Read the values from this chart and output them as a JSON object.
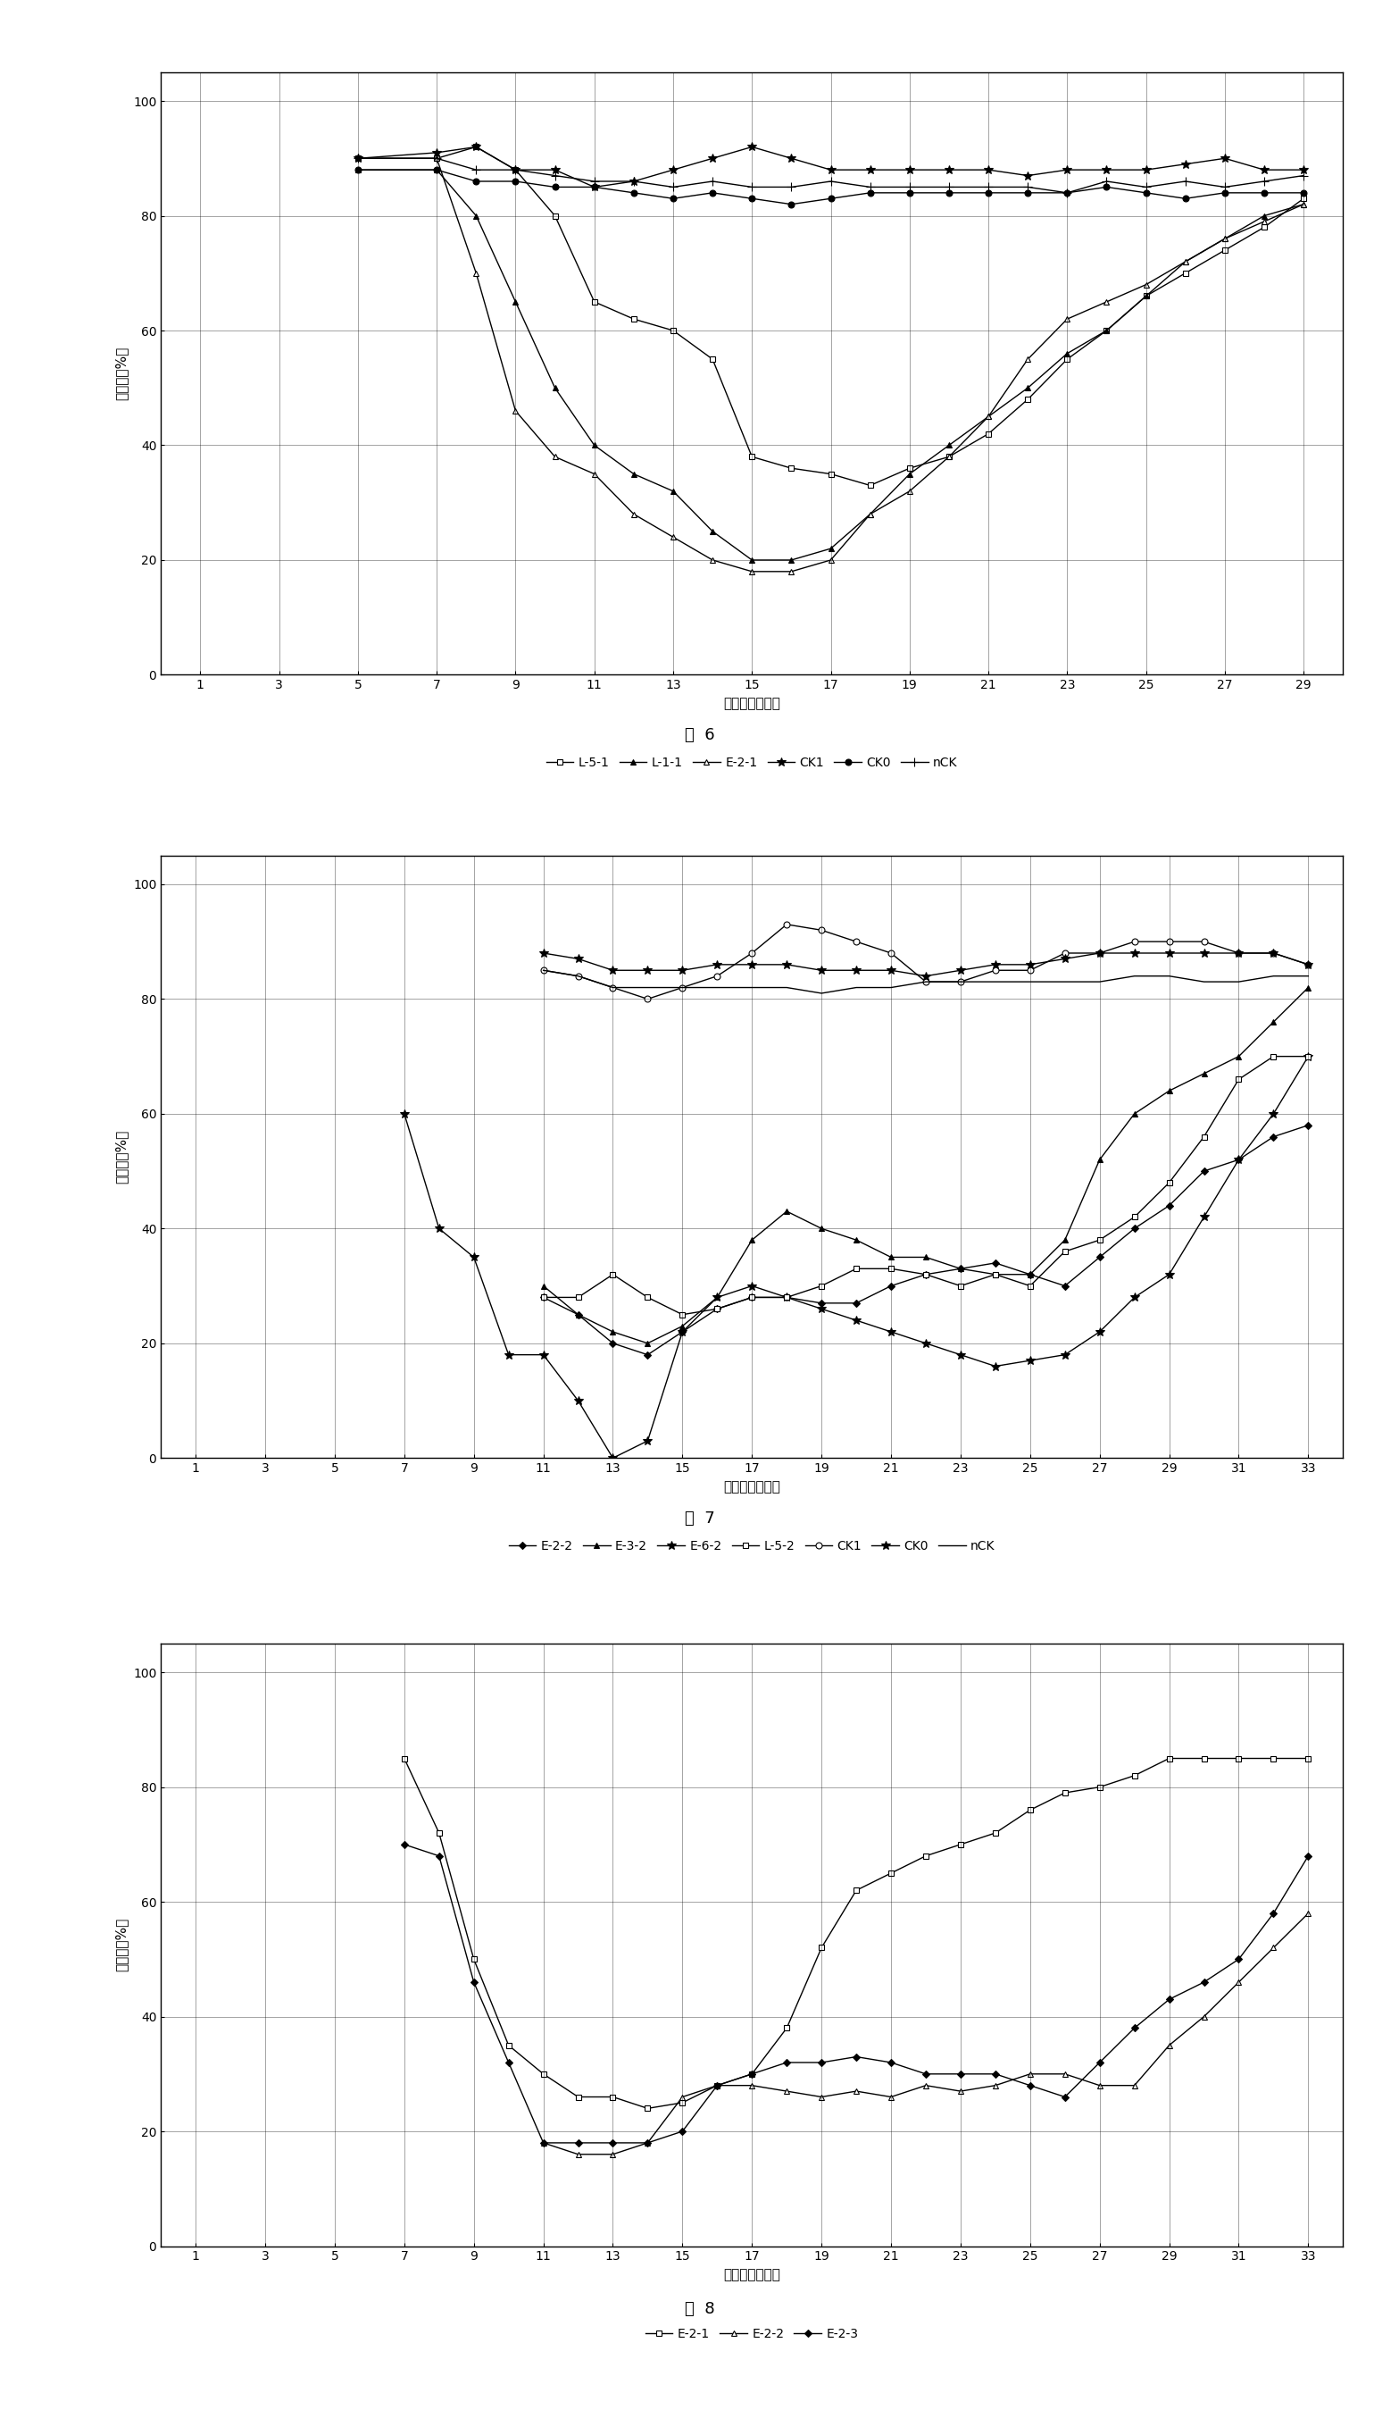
{
  "fig6": {
    "title": "图  6",
    "xlabel": "检测时间（天）",
    "ylabel": "萌发率（%）",
    "xticks": [
      1,
      3,
      5,
      7,
      9,
      11,
      13,
      15,
      17,
      19,
      21,
      23,
      25,
      27,
      29
    ],
    "yticks": [
      0,
      20,
      40,
      60,
      80,
      100
    ],
    "xlim": [
      0,
      30
    ],
    "ylim": [
      0,
      105
    ],
    "series": [
      {
        "label": "L-5-1",
        "x": [
          5,
          7,
          8,
          9,
          10,
          11,
          12,
          13,
          14,
          15,
          16,
          17,
          18,
          19,
          20,
          21,
          22,
          23,
          24,
          25,
          26,
          27,
          28,
          29
        ],
        "y": [
          90,
          90,
          92,
          88,
          80,
          65,
          62,
          60,
          55,
          38,
          36,
          35,
          33,
          36,
          38,
          42,
          48,
          55,
          60,
          66,
          70,
          74,
          78,
          83
        ],
        "marker": "s",
        "fillstyle": "none",
        "ms": 4,
        "lw": 1.0
      },
      {
        "label": "L-1-1",
        "x": [
          5,
          7,
          8,
          9,
          10,
          11,
          12,
          13,
          14,
          15,
          16,
          17,
          18,
          19,
          20,
          21,
          22,
          23,
          24,
          25,
          26,
          27,
          28,
          29
        ],
        "y": [
          88,
          88,
          80,
          65,
          50,
          40,
          35,
          32,
          25,
          20,
          20,
          22,
          28,
          35,
          40,
          45,
          50,
          56,
          60,
          66,
          72,
          76,
          80,
          82
        ],
        "marker": "^",
        "fillstyle": "full",
        "ms": 5,
        "lw": 1.0
      },
      {
        "label": "E-2-1",
        "x": [
          5,
          7,
          8,
          9,
          10,
          11,
          12,
          13,
          14,
          15,
          16,
          17,
          18,
          19,
          20,
          21,
          22,
          23,
          24,
          25,
          26,
          27,
          28,
          29
        ],
        "y": [
          90,
          90,
          70,
          46,
          38,
          35,
          28,
          24,
          20,
          18,
          18,
          20,
          28,
          32,
          38,
          45,
          55,
          62,
          65,
          68,
          72,
          76,
          79,
          82
        ],
        "marker": "^",
        "fillstyle": "none",
        "ms": 5,
        "lw": 1.0
      },
      {
        "label": "CK1",
        "x": [
          5,
          7,
          8,
          9,
          10,
          11,
          12,
          13,
          14,
          15,
          16,
          17,
          18,
          19,
          20,
          21,
          22,
          23,
          24,
          25,
          26,
          27,
          28,
          29
        ],
        "y": [
          90,
          91,
          92,
          88,
          88,
          85,
          86,
          88,
          90,
          92,
          90,
          88,
          88,
          88,
          88,
          88,
          87,
          88,
          88,
          88,
          89,
          90,
          88,
          88
        ],
        "marker": "*",
        "fillstyle": "full",
        "ms": 7,
        "lw": 1.0
      },
      {
        "label": "CK0",
        "x": [
          5,
          7,
          8,
          9,
          10,
          11,
          12,
          13,
          14,
          15,
          16,
          17,
          18,
          19,
          20,
          21,
          22,
          23,
          24,
          25,
          26,
          27,
          28,
          29
        ],
        "y": [
          88,
          88,
          86,
          86,
          85,
          85,
          84,
          83,
          84,
          83,
          82,
          83,
          84,
          84,
          84,
          84,
          84,
          84,
          85,
          84,
          83,
          84,
          84,
          84
        ],
        "marker": "o",
        "fillstyle": "full",
        "ms": 5,
        "lw": 1.0
      },
      {
        "label": "nCK",
        "x": [
          5,
          7,
          8,
          9,
          10,
          11,
          12,
          13,
          14,
          15,
          16,
          17,
          18,
          19,
          20,
          21,
          22,
          23,
          24,
          25,
          26,
          27,
          28,
          29
        ],
        "y": [
          90,
          90,
          88,
          88,
          87,
          86,
          86,
          85,
          86,
          85,
          85,
          86,
          85,
          85,
          85,
          85,
          85,
          84,
          86,
          85,
          86,
          85,
          86,
          87
        ],
        "marker": "+",
        "fillstyle": "full",
        "ms": 7,
        "lw": 1.0
      }
    ]
  },
  "fig7": {
    "title": "图  7",
    "xlabel": "检测时间（天）",
    "ylabel": "萌发率（%）",
    "xticks": [
      1,
      3,
      5,
      7,
      9,
      11,
      13,
      15,
      17,
      19,
      21,
      23,
      25,
      27,
      29,
      31,
      33
    ],
    "yticks": [
      0,
      20,
      40,
      60,
      80,
      100
    ],
    "xlim": [
      0,
      34
    ],
    "ylim": [
      0,
      105
    ],
    "series": [
      {
        "label": "E-2-2",
        "x": [
          7,
          8,
          9,
          10,
          11,
          12,
          13,
          14,
          15,
          16,
          17,
          18,
          19,
          20,
          21,
          22,
          23,
          24,
          25,
          26,
          27,
          28,
          29,
          30,
          31,
          32,
          33
        ],
        "y": [
          null,
          null,
          null,
          null,
          28,
          25,
          20,
          18,
          22,
          26,
          28,
          28,
          27,
          27,
          30,
          32,
          33,
          34,
          32,
          30,
          35,
          40,
          44,
          50,
          52,
          56,
          58
        ],
        "marker": "D",
        "fillstyle": "full",
        "ms": 4,
        "lw": 1.0
      },
      {
        "label": "E-3-2",
        "x": [
          9,
          10,
          11,
          12,
          13,
          14,
          15,
          16,
          17,
          18,
          19,
          20,
          21,
          22,
          23,
          24,
          25,
          26,
          27,
          28,
          29,
          30,
          31,
          32,
          33
        ],
        "y": [
          null,
          null,
          30,
          25,
          22,
          20,
          23,
          28,
          38,
          43,
          40,
          38,
          35,
          35,
          33,
          32,
          32,
          38,
          52,
          60,
          64,
          67,
          70,
          76,
          82
        ],
        "marker": "^",
        "fillstyle": "full",
        "ms": 5,
        "lw": 1.0
      },
      {
        "label": "E-6-2",
        "x": [
          7,
          8,
          9,
          10,
          11,
          12,
          13,
          14,
          15,
          16,
          17,
          18,
          19,
          20,
          21,
          22,
          23,
          24,
          25,
          26,
          27,
          28,
          29,
          30,
          31,
          32,
          33
        ],
        "y": [
          60,
          40,
          35,
          18,
          18,
          10,
          0,
          3,
          22,
          28,
          30,
          28,
          26,
          24,
          22,
          20,
          18,
          16,
          17,
          18,
          22,
          28,
          32,
          42,
          52,
          60,
          70
        ],
        "marker": "*",
        "fillstyle": "full",
        "ms": 7,
        "lw": 1.0
      },
      {
        "label": "L-5-2",
        "x": [
          9,
          10,
          11,
          12,
          13,
          14,
          15,
          16,
          17,
          18,
          19,
          20,
          21,
          22,
          23,
          24,
          25,
          26,
          27,
          28,
          29,
          30,
          31,
          32,
          33
        ],
        "y": [
          null,
          null,
          28,
          28,
          32,
          28,
          25,
          26,
          28,
          28,
          30,
          33,
          33,
          32,
          30,
          32,
          30,
          36,
          38,
          42,
          48,
          56,
          66,
          70,
          70
        ],
        "marker": "s",
        "fillstyle": "none",
        "ms": 4,
        "lw": 1.0
      },
      {
        "label": "CK1",
        "x": [
          9,
          10,
          11,
          12,
          13,
          14,
          15,
          16,
          17,
          18,
          19,
          20,
          21,
          22,
          23,
          24,
          25,
          26,
          27,
          28,
          29,
          30,
          31,
          32,
          33
        ],
        "y": [
          null,
          null,
          85,
          84,
          82,
          80,
          82,
          84,
          88,
          93,
          92,
          90,
          88,
          83,
          83,
          85,
          85,
          88,
          88,
          90,
          90,
          90,
          88,
          88,
          86
        ],
        "marker": "o",
        "fillstyle": "none",
        "ms": 5,
        "lw": 1.0
      },
      {
        "label": "CK0",
        "x": [
          9,
          10,
          11,
          12,
          13,
          14,
          15,
          16,
          17,
          18,
          19,
          20,
          21,
          22,
          23,
          24,
          25,
          26,
          27,
          28,
          29,
          30,
          31,
          32,
          33
        ],
        "y": [
          null,
          null,
          88,
          87,
          85,
          85,
          85,
          86,
          86,
          86,
          85,
          85,
          85,
          84,
          85,
          86,
          86,
          87,
          88,
          88,
          88,
          88,
          88,
          88,
          86
        ],
        "marker": "*",
        "fillstyle": "full",
        "ms": 7,
        "lw": 1.0
      },
      {
        "label": "nCK",
        "x": [
          9,
          10,
          11,
          12,
          13,
          14,
          15,
          16,
          17,
          18,
          19,
          20,
          21,
          22,
          23,
          24,
          25,
          26,
          27,
          28,
          29,
          30,
          31,
          32,
          33
        ],
        "y": [
          null,
          null,
          85,
          84,
          82,
          82,
          82,
          82,
          82,
          82,
          81,
          82,
          82,
          83,
          83,
          83,
          83,
          83,
          83,
          84,
          84,
          83,
          83,
          84,
          84
        ],
        "marker": "",
        "fillstyle": "full",
        "ms": 0,
        "lw": 1.0
      }
    ]
  },
  "fig8": {
    "title": "图  8",
    "xlabel": "检测时间（天）",
    "ylabel": "萌发率（%）",
    "xticks": [
      1,
      3,
      5,
      7,
      9,
      11,
      13,
      15,
      17,
      19,
      21,
      23,
      25,
      27,
      29,
      31,
      33
    ],
    "yticks": [
      0,
      20,
      40,
      60,
      80,
      100
    ],
    "xlim": [
      0,
      34
    ],
    "ylim": [
      0,
      105
    ],
    "series": [
      {
        "label": "E-2-1",
        "x": [
          7,
          8,
          9,
          10,
          11,
          12,
          13,
          14,
          15,
          16,
          17,
          18,
          19,
          20,
          21,
          22,
          23,
          24,
          25,
          26,
          27,
          28,
          29,
          30,
          31,
          32,
          33
        ],
        "y": [
          85,
          72,
          50,
          35,
          30,
          26,
          26,
          24,
          25,
          28,
          30,
          38,
          52,
          62,
          65,
          68,
          70,
          72,
          76,
          79,
          80,
          82,
          85,
          85,
          85,
          85,
          85
        ],
        "marker": "s",
        "fillstyle": "none",
        "ms": 4,
        "lw": 1.0
      },
      {
        "label": "E-2-2",
        "x": [
          9,
          10,
          11,
          12,
          13,
          14,
          15,
          16,
          17,
          18,
          19,
          20,
          21,
          22,
          23,
          24,
          25,
          26,
          27,
          28,
          29,
          30,
          31,
          32,
          33
        ],
        "y": [
          null,
          null,
          18,
          16,
          16,
          18,
          26,
          28,
          28,
          27,
          26,
          27,
          26,
          28,
          27,
          28,
          30,
          30,
          28,
          28,
          35,
          40,
          46,
          52,
          58
        ],
        "marker": "^",
        "fillstyle": "none",
        "ms": 5,
        "lw": 1.0
      },
      {
        "label": "E-2-3",
        "x": [
          7,
          8,
          9,
          10,
          11,
          12,
          13,
          14,
          15,
          16,
          17,
          18,
          19,
          20,
          21,
          22,
          23,
          24,
          25,
          26,
          27,
          28,
          29,
          30,
          31,
          32,
          33
        ],
        "y": [
          70,
          68,
          46,
          32,
          18,
          18,
          18,
          18,
          20,
          28,
          30,
          32,
          32,
          33,
          32,
          30,
          30,
          30,
          28,
          26,
          32,
          38,
          43,
          46,
          50,
          58,
          68
        ],
        "marker": "D",
        "fillstyle": "full",
        "ms": 4,
        "lw": 1.0
      }
    ]
  }
}
